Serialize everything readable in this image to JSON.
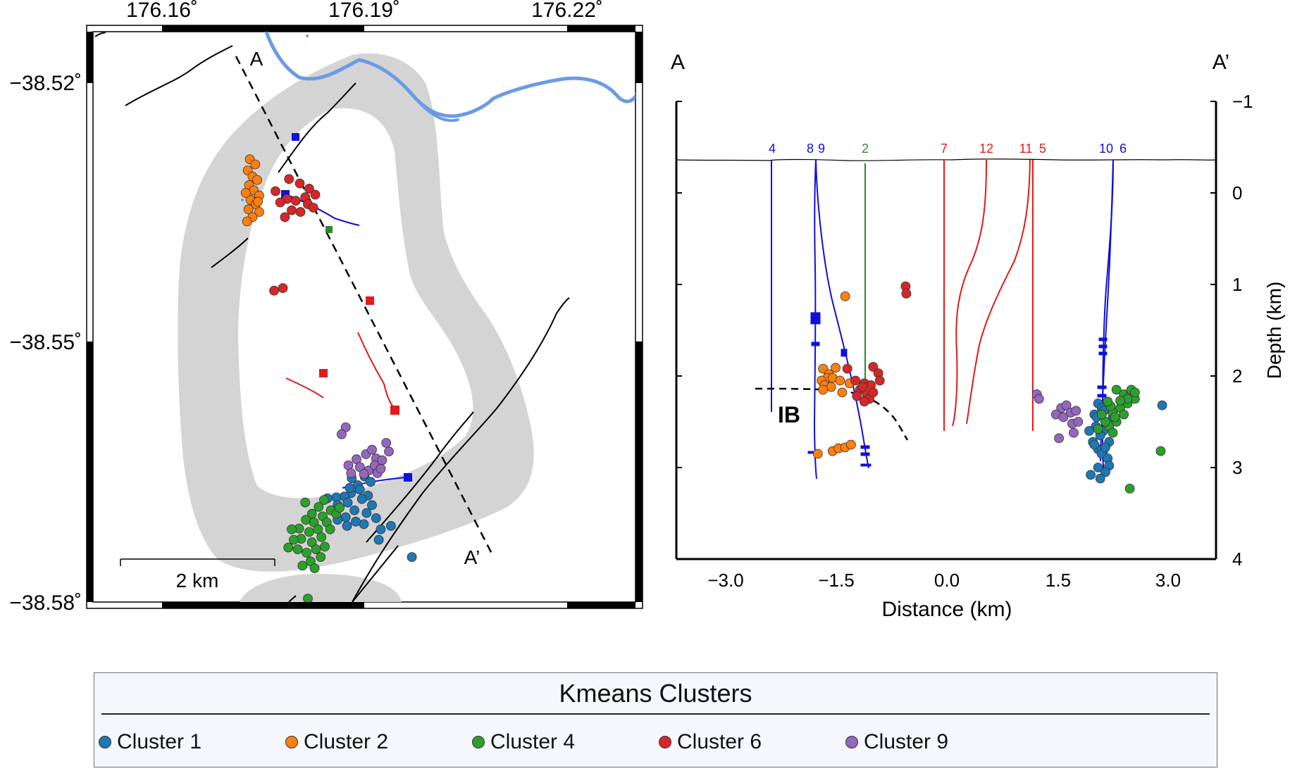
{
  "chart_data": [
    {
      "type": "scatter",
      "panel": "map",
      "x_tick_labels": [
        "176.16˚",
        "176.19˚",
        "176.22˚"
      ],
      "y_tick_labels": [
        "−38.52˚",
        "−38.55˚",
        "−38.58˚"
      ],
      "xlim": [
        176.145,
        176.225
      ],
      "ylim": [
        -38.58,
        -38.518
      ],
      "profile_labels": {
        "start": "A",
        "end": "A’"
      },
      "scale_bar_label": "2 km",
      "series": [
        {
          "name": "Cluster 1",
          "points": [
            [
              176.19,
              -38.5655
            ],
            [
              176.189,
              -38.5665
            ],
            [
              176.188,
              -38.5674
            ],
            [
              176.187,
              -38.5678
            ],
            [
              176.1858,
              -38.5679
            ],
            [
              176.1845,
              -38.568
            ],
            [
              176.1875,
              -38.5685
            ],
            [
              176.186,
              -38.5688
            ],
            [
              176.1885,
              -38.5694
            ],
            [
              176.1872,
              -38.5702
            ],
            [
              176.1893,
              -38.567
            ],
            [
              176.1878,
              -38.5668
            ],
            [
              176.1905,
              -38.5677
            ],
            [
              176.1911,
              -38.5688
            ],
            [
              176.1903,
              -38.5697
            ],
            [
              176.1917,
              -38.5703
            ],
            [
              176.1899,
              -38.571
            ],
            [
              176.1887,
              -38.5707
            ],
            [
              176.1874,
              -38.5712
            ],
            [
              176.186,
              -38.5705
            ],
            [
              176.1924,
              -38.5716
            ],
            [
              176.1921,
              -38.5728
            ],
            [
              176.1939,
              -38.5712
            ],
            [
              176.197,
              -38.5748
            ],
            [
              176.1896,
              -38.5681
            ],
            [
              176.1909,
              -38.5661
            ],
            [
              176.1881,
              -38.5657
            ]
          ]
        },
        {
          "name": "Cluster 2",
          "points": [
            [
              176.173,
              -38.5288
            ],
            [
              176.1738,
              -38.5294
            ],
            [
              176.1727,
              -38.5301
            ],
            [
              176.1734,
              -38.5308
            ],
            [
              176.1741,
              -38.5312
            ],
            [
              176.1729,
              -38.5318
            ],
            [
              176.1736,
              -38.5324
            ],
            [
              176.1744,
              -38.533
            ],
            [
              176.1731,
              -38.5335
            ],
            [
              176.1739,
              -38.534
            ],
            [
              176.1728,
              -38.5346
            ],
            [
              176.1744,
              -38.5349
            ],
            [
              176.1734,
              -38.5355
            ],
            [
              176.1726,
              -38.536
            ],
            [
              176.1742,
              -38.5337
            ],
            [
              176.1724,
              -38.5327
            ]
          ]
        },
        {
          "name": "Cluster 4",
          "points": [
            [
              176.184,
              -38.5682
            ],
            [
              176.1832,
              -38.569
            ],
            [
              176.1822,
              -38.5698
            ],
            [
              176.1813,
              -38.5705
            ],
            [
              176.1825,
              -38.5708
            ],
            [
              176.1838,
              -38.5701
            ],
            [
              176.185,
              -38.5694
            ],
            [
              176.1844,
              -38.5708
            ],
            [
              176.1831,
              -38.5716
            ],
            [
              176.1818,
              -38.5719
            ],
            [
              176.1806,
              -38.5727
            ],
            [
              176.1822,
              -38.5731
            ],
            [
              176.1836,
              -38.5725
            ],
            [
              176.1849,
              -38.5716
            ],
            [
              176.1828,
              -38.5739
            ],
            [
              176.1814,
              -38.5743
            ],
            [
              176.1801,
              -38.5739
            ],
            [
              176.1835,
              -38.5748
            ],
            [
              176.182,
              -38.5753
            ],
            [
              176.1808,
              -38.5758
            ],
            [
              176.1795,
              -38.5728
            ],
            [
              176.1787,
              -38.5737
            ],
            [
              176.1826,
              -38.5761
            ],
            [
              176.1812,
              -38.5685
            ],
            [
              176.1858,
              -38.5698
            ],
            [
              176.1863,
              -38.5691
            ],
            [
              176.1841,
              -38.5736
            ],
            [
              176.1803,
              -38.5715
            ],
            [
              176.1816,
              -38.5796
            ],
            [
              176.1792,
              -38.5716
            ]
          ]
        },
        {
          "name": "Cluster 6",
          "points": [
            [
              176.1788,
              -38.5311
            ],
            [
              176.1804,
              -38.5316
            ],
            [
              176.1818,
              -38.5322
            ],
            [
              176.1827,
              -38.5329
            ],
            [
              176.1812,
              -38.5332
            ],
            [
              176.1798,
              -38.5336
            ],
            [
              176.1785,
              -38.5334
            ],
            [
              176.1775,
              -38.5338
            ],
            [
              176.1792,
              -38.5347
            ],
            [
              176.1805,
              -38.5349
            ],
            [
              176.1782,
              -38.5355
            ],
            [
              176.1816,
              -38.534
            ],
            [
              176.1824,
              -38.5344
            ],
            [
              176.1768,
              -38.5325
            ],
            [
              176.1779,
              -38.5437
            ],
            [
              176.1766,
              -38.544
            ]
          ]
        },
        {
          "name": "Cluster 9",
          "points": [
            [
              176.1872,
              -38.5598
            ],
            [
              176.1866,
              -38.5606
            ],
            [
              176.1917,
              -38.5634
            ],
            [
              176.1902,
              -38.5629
            ],
            [
              176.1888,
              -38.5635
            ],
            [
              176.1876,
              -38.5642
            ],
            [
              176.1893,
              -38.5644
            ],
            [
              176.1906,
              -38.5648
            ],
            [
              176.1915,
              -38.5642
            ],
            [
              176.1926,
              -38.5636
            ],
            [
              176.1936,
              -38.5626
            ],
            [
              176.1932,
              -38.5616
            ],
            [
              176.1919,
              -38.5651
            ],
            [
              176.1899,
              -38.5652
            ],
            [
              176.188,
              -38.5651
            ],
            [
              176.1911,
              -38.5624
            ],
            [
              176.1924,
              -38.5646
            ]
          ]
        }
      ],
      "well_numbers": [
        "4",
        "8",
        "9",
        "2",
        "7",
        "12",
        "11",
        "5",
        "10",
        "6"
      ]
    },
    {
      "type": "scatter",
      "panel": "cross-section",
      "section_labels": {
        "start": "A",
        "end": "A’"
      },
      "xlabel": "Distance (km)",
      "ylabel": "Depth (km)",
      "x_tick_labels": [
        "−3.0",
        "−1.5",
        "0.0",
        "1.5",
        "3.0"
      ],
      "y_tick_labels": [
        "−1",
        "0",
        "1",
        "2",
        "3",
        "4"
      ],
      "xlim": [
        -3.6,
        3.6
      ],
      "ylim": [
        -1,
        4
      ],
      "annotation": "IB",
      "series": [
        {
          "name": "Cluster 1",
          "points": [
            [
              2.05,
              2.3
            ],
            [
              2.1,
              2.35
            ],
            [
              2.0,
              2.42
            ],
            [
              2.15,
              2.5
            ],
            [
              2.02,
              2.55
            ],
            [
              2.12,
              2.6
            ],
            [
              2.08,
              2.65
            ],
            [
              1.98,
              2.72
            ],
            [
              2.2,
              2.72
            ],
            [
              2.05,
              2.8
            ],
            [
              2.1,
              2.85
            ],
            [
              2.18,
              2.9
            ],
            [
              2.2,
              2.98
            ],
            [
              2.05,
              3.0
            ],
            [
              2.15,
              3.05
            ],
            [
              1.95,
              3.08
            ],
            [
              2.08,
              3.12
            ],
            [
              2.25,
              2.45
            ],
            [
              1.93,
              2.6
            ],
            [
              2.15,
              2.78
            ],
            [
              2.03,
              2.45
            ],
            [
              2.13,
              2.38
            ],
            [
              2.92,
              2.32
            ],
            [
              2.0,
              2.75
            ]
          ]
        },
        {
          "name": "Cluster 2",
          "points": [
            [
              -1.68,
              1.92
            ],
            [
              -1.6,
              1.98
            ],
            [
              -1.62,
              2.02
            ],
            [
              -1.7,
              2.05
            ],
            [
              -1.55,
              2.02
            ],
            [
              -1.66,
              2.1
            ],
            [
              -1.57,
              2.12
            ],
            [
              -1.45,
              2.05
            ],
            [
              -1.32,
              2.08
            ],
            [
              -1.68,
              2.15
            ],
            [
              -1.42,
              2.18
            ],
            [
              -1.51,
              1.91
            ],
            [
              -1.38,
              1.13
            ],
            [
              -1.75,
              2.85
            ],
            [
              -1.55,
              2.82
            ],
            [
              -1.47,
              2.79
            ],
            [
              -1.38,
              2.78
            ],
            [
              -1.3,
              2.75
            ]
          ]
        },
        {
          "name": "Cluster 4",
          "points": [
            [
              2.3,
              2.15
            ],
            [
              2.4,
              2.2
            ],
            [
              2.5,
              2.18
            ],
            [
              2.55,
              2.25
            ],
            [
              2.45,
              2.3
            ],
            [
              2.35,
              2.35
            ],
            [
              2.25,
              2.4
            ],
            [
              2.4,
              2.42
            ],
            [
              2.3,
              2.5
            ],
            [
              2.2,
              2.55
            ],
            [
              2.5,
              2.15
            ],
            [
              2.45,
              2.25
            ],
            [
              2.35,
              2.27
            ],
            [
              2.22,
              2.33
            ],
            [
              2.28,
              2.45
            ],
            [
              2.15,
              2.5
            ],
            [
              2.1,
              2.42
            ],
            [
              2.25,
              2.62
            ],
            [
              2.55,
              2.18
            ],
            [
              2.9,
              2.82
            ],
            [
              2.48,
              3.23
            ],
            [
              2.05,
              2.58
            ],
            [
              2.18,
              2.28
            ]
          ]
        },
        {
          "name": "Cluster 6",
          "points": [
            [
              -1.24,
              2.05
            ],
            [
              -1.12,
              2.08
            ],
            [
              -1.03,
              2.1
            ],
            [
              -1.0,
              1.9
            ],
            [
              -0.93,
              1.97
            ],
            [
              -0.91,
              2.05
            ],
            [
              -1.18,
              2.15
            ],
            [
              -1.08,
              2.2
            ],
            [
              -1.05,
              2.25
            ],
            [
              -1.12,
              2.28
            ],
            [
              -1.22,
              2.22
            ],
            [
              -1.0,
              2.18
            ],
            [
              -1.14,
              2.12
            ],
            [
              -1.35,
              1.92
            ],
            [
              -0.56,
              1.02
            ],
            [
              -0.55,
              1.1
            ]
          ]
        },
        {
          "name": "Cluster 9",
          "points": [
            [
              1.22,
              2.2
            ],
            [
              1.25,
              2.25
            ],
            [
              1.55,
              2.35
            ],
            [
              1.62,
              2.32
            ],
            [
              1.48,
              2.42
            ],
            [
              1.58,
              2.45
            ],
            [
              1.68,
              2.4
            ],
            [
              1.75,
              2.38
            ],
            [
              1.7,
              2.52
            ],
            [
              1.52,
              2.68
            ],
            [
              1.72,
              2.62
            ],
            [
              1.78,
              2.5
            ]
          ]
        }
      ],
      "wells": [
        {
          "label": "4",
          "color": "#1010d8"
        },
        {
          "label": "8",
          "color": "#1010d8"
        },
        {
          "label": "9",
          "color": "#1010d8"
        },
        {
          "label": "2",
          "color": "#2a8a2a"
        },
        {
          "label": "7",
          "color": "#e21a1a"
        },
        {
          "label": "12",
          "color": "#e21a1a"
        },
        {
          "label": "11",
          "color": "#e21a1a"
        },
        {
          "label": "5",
          "color": "#e21a1a"
        },
        {
          "label": "10",
          "color": "#1010d8"
        },
        {
          "label": "6",
          "color": "#1010d8"
        }
      ]
    }
  ],
  "legend": {
    "title": "Kmeans Clusters",
    "items": [
      {
        "label": "Cluster 1",
        "color": "#1f77b4"
      },
      {
        "label": "Cluster 2",
        "color": "#ff7f0e"
      },
      {
        "label": "Cluster 4",
        "color": "#2ca02c"
      },
      {
        "label": "Cluster 6",
        "color": "#d62728"
      },
      {
        "label": "Cluster 9",
        "color": "#9467bd"
      }
    ]
  },
  "colors": {
    "cluster_1": "#1f77b4",
    "cluster_2": "#ff7f0e",
    "cluster_4": "#2ca02c",
    "cluster_6": "#d62728",
    "cluster_9": "#9467bd",
    "well_blue": "#1010d8",
    "well_red": "#e21a1a",
    "well_green": "#2a8a2a",
    "river": "#6b9ae6",
    "caldera_zone": "#d4d4d4"
  }
}
